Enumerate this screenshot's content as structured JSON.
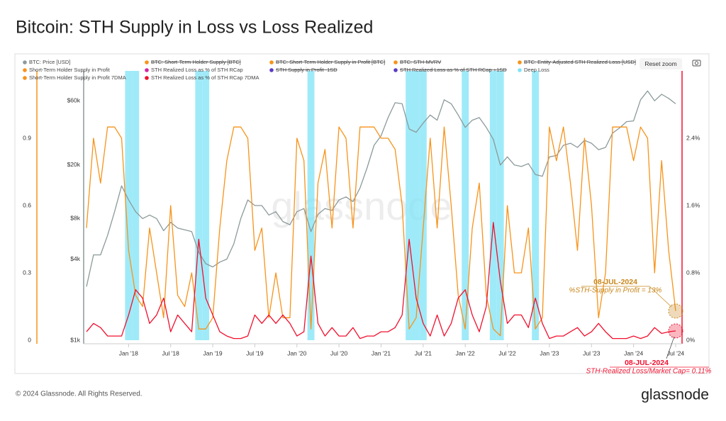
{
  "chart_data": {
    "type": "line",
    "title": "Bitcoin: STH Supply in Loss vs Loss Realized",
    "x": [
      "2017-07",
      "2017-08",
      "2017-09",
      "2017-10",
      "2017-11",
      "2017-12",
      "2018-01",
      "2018-02",
      "2018-03",
      "2018-04",
      "2018-05",
      "2018-06",
      "2018-07",
      "2018-08",
      "2018-09",
      "2018-10",
      "2018-11",
      "2018-12",
      "2019-01",
      "2019-02",
      "2019-03",
      "2019-04",
      "2019-05",
      "2019-06",
      "2019-07",
      "2019-08",
      "2019-09",
      "2019-10",
      "2019-11",
      "2019-12",
      "2020-01",
      "2020-02",
      "2020-03",
      "2020-04",
      "2020-05",
      "2020-06",
      "2020-07",
      "2020-08",
      "2020-09",
      "2020-10",
      "2020-11",
      "2020-12",
      "2021-01",
      "2021-02",
      "2021-03",
      "2021-04",
      "2021-05",
      "2021-06",
      "2021-07",
      "2021-08",
      "2021-09",
      "2021-10",
      "2021-11",
      "2021-12",
      "2022-01",
      "2022-02",
      "2022-03",
      "2022-04",
      "2022-05",
      "2022-06",
      "2022-07",
      "2022-08",
      "2022-09",
      "2022-10",
      "2022-11",
      "2022-12",
      "2023-01",
      "2023-02",
      "2023-03",
      "2023-04",
      "2023-05",
      "2023-06",
      "2023-07",
      "2023-08",
      "2023-09",
      "2023-10",
      "2023-11",
      "2023-12",
      "2024-01",
      "2024-02",
      "2024-03",
      "2024-04",
      "2024-05",
      "2024-06",
      "2024-07"
    ],
    "xticks": [
      {
        "value": "2018-01",
        "label": "Jan '18"
      },
      {
        "value": "2018-07",
        "label": "Jul '18"
      },
      {
        "value": "2019-01",
        "label": "Jan '19"
      },
      {
        "value": "2019-07",
        "label": "Jul '19"
      },
      {
        "value": "2020-01",
        "label": "Jan '20"
      },
      {
        "value": "2020-07",
        "label": "Jul '20"
      },
      {
        "value": "2021-01",
        "label": "Jan '21"
      },
      {
        "value": "2021-07",
        "label": "Jul '21"
      },
      {
        "value": "2022-01",
        "label": "Jan '22"
      },
      {
        "value": "2022-07",
        "label": "Jul '22"
      },
      {
        "value": "2023-01",
        "label": "Jan '23"
      },
      {
        "value": "2023-07",
        "label": "Jul '23"
      },
      {
        "value": "2024-01",
        "label": "Jan '24"
      },
      {
        "value": "2024-07",
        "label": "Jul '24"
      }
    ],
    "ylim": [
      0,
      1.2
    ],
    "yticks": [
      0,
      0.3,
      0.6,
      0.9
    ],
    "y2lim": [
      0,
      3.2
    ],
    "y2ticks": [
      {
        "value": 0,
        "label": "0%"
      },
      {
        "value": 0.8,
        "label": "0.8%"
      },
      {
        "value": 1.6,
        "label": "1.6%"
      },
      {
        "value": 2.4,
        "label": "2.4%"
      }
    ],
    "y3lim": [
      1000,
      100000
    ],
    "y3_log": true,
    "y3ticks": [
      {
        "value": 1000,
        "label": "$1k"
      },
      {
        "value": 4000,
        "label": "$4k"
      },
      {
        "value": 8000,
        "label": "$8k"
      },
      {
        "value": 20000,
        "label": "$20k"
      },
      {
        "value": 60000,
        "label": "$60k"
      }
    ],
    "series": [
      {
        "name": "BTC: Price [USD]",
        "color": "#8c9a9a",
        "axis": "y3",
        "visible": true,
        "values": [
          2500,
          4300,
          4300,
          6000,
          9000,
          14000,
          11000,
          9000,
          8000,
          8500,
          8000,
          6500,
          7500,
          6800,
          6600,
          6400,
          4500,
          3700,
          3500,
          3800,
          4000,
          5200,
          8000,
          11000,
          10000,
          10000,
          8500,
          9000,
          7600,
          7200,
          9000,
          9500,
          6400,
          8600,
          9500,
          9200,
          11000,
          11600,
          10700,
          13500,
          19000,
          28000,
          33000,
          45000,
          58000,
          57000,
          37000,
          35000,
          41000,
          47000,
          43000,
          61000,
          57000,
          47000,
          38000,
          43000,
          45000,
          38000,
          31000,
          20000,
          23000,
          20000,
          19500,
          20500,
          17000,
          16500,
          23000,
          23500,
          28000,
          29000,
          27000,
          30500,
          29000,
          26000,
          27000,
          34500,
          37700,
          42000,
          42500,
          61000,
          71000,
          60000,
          67000,
          62500,
          57000
        ]
      },
      {
        "name": "BTC: Short-Term Holder Supply [BTC]",
        "color": "#f7931a",
        "visible": false
      },
      {
        "name": "BTC: Short-Term Holder Supply in Profit [BTC]",
        "color": "#f7931a",
        "visible": false
      },
      {
        "name": "BTC: STH-MVRV",
        "color": "#f7931a",
        "visible": false
      },
      {
        "name": "BTC: Entity-Adjusted STH Realized Loss [USD]",
        "color": "#f7931a",
        "visible": false
      },
      {
        "name": "Short-Term Holder Supply in Profit",
        "color": "#f7931a",
        "visible": true
      },
      {
        "name": "STH Realized Loss as % of STH RCap",
        "color": "#d6249f",
        "visible": true
      },
      {
        "name": "STH Supply in Profit -1SD",
        "color": "#5b3cc4",
        "visible": false
      },
      {
        "name": "STH Realized Loss as % of STH RCap +1SD",
        "color": "#5b3cc4",
        "visible": false
      },
      {
        "name": "Deep Loss",
        "color": "#7fe3f5",
        "type": "band",
        "values": [
          null,
          null,
          null,
          null,
          null,
          null,
          1,
          1,
          null,
          null,
          null,
          null,
          null,
          null,
          null,
          null,
          1,
          1,
          null,
          null,
          null,
          null,
          null,
          null,
          null,
          null,
          null,
          null,
          null,
          null,
          null,
          null,
          1,
          null,
          null,
          null,
          null,
          null,
          null,
          null,
          null,
          null,
          null,
          null,
          null,
          null,
          1,
          1,
          1,
          null,
          null,
          null,
          null,
          null,
          1,
          null,
          null,
          null,
          1,
          1,
          null,
          null,
          null,
          null,
          1,
          null,
          null,
          null,
          null,
          null,
          null,
          null,
          null,
          null,
          null,
          null,
          null,
          null,
          null,
          null,
          null,
          null,
          null,
          null,
          null
        ]
      },
      {
        "name": "Short-Term Holder Supply in Profit 7DMA",
        "color": "#f7931a",
        "axis": "y",
        "visible": true,
        "values": [
          0.5,
          0.9,
          0.7,
          0.95,
          0.95,
          0.9,
          0.4,
          0.2,
          0.15,
          0.5,
          0.3,
          0.1,
          0.6,
          0.2,
          0.15,
          0.3,
          0.05,
          0.05,
          0.1,
          0.5,
          0.8,
          0.95,
          0.95,
          0.9,
          0.4,
          0.5,
          0.1,
          0.3,
          0.1,
          0.1,
          0.9,
          0.8,
          0.05,
          0.7,
          0.85,
          0.5,
          0.95,
          0.9,
          0.5,
          0.95,
          0.95,
          0.95,
          0.9,
          0.9,
          0.85,
          0.6,
          0.05,
          0.1,
          0.5,
          0.9,
          0.5,
          0.95,
          0.6,
          0.2,
          0.05,
          0.5,
          0.7,
          0.2,
          0.05,
          0.02,
          0.6,
          0.3,
          0.3,
          0.5,
          0.05,
          0.1,
          0.95,
          0.8,
          0.95,
          0.7,
          0.4,
          0.9,
          0.6,
          0.1,
          0.3,
          0.95,
          0.95,
          0.95,
          0.8,
          0.95,
          0.9,
          0.3,
          0.8,
          0.4,
          0.13
        ]
      },
      {
        "name": "STH Realized Loss as % of STH RCap 7DMA",
        "color": "#f0102e",
        "axis": "y2",
        "visible": true,
        "values": [
          0.1,
          0.2,
          0.15,
          0.05,
          0.05,
          0.05,
          0.3,
          0.6,
          0.5,
          0.2,
          0.3,
          0.5,
          0.1,
          0.3,
          0.2,
          0.1,
          1.2,
          0.5,
          0.3,
          0.1,
          0.05,
          0.02,
          0.02,
          0.05,
          0.3,
          0.2,
          0.3,
          0.2,
          0.3,
          0.2,
          0.05,
          0.1,
          1.0,
          0.2,
          0.05,
          0.15,
          0.05,
          0.05,
          0.15,
          0.02,
          0.05,
          0.05,
          0.1,
          0.1,
          0.15,
          0.3,
          1.2,
          0.5,
          0.2,
          0.05,
          0.3,
          0.05,
          0.2,
          0.5,
          0.6,
          0.3,
          0.1,
          0.4,
          1.4,
          0.7,
          0.2,
          0.3,
          0.3,
          0.15,
          0.5,
          0.2,
          0.02,
          0.05,
          0.05,
          0.1,
          0.15,
          0.05,
          0.1,
          0.2,
          0.1,
          0.02,
          0.02,
          0.02,
          0.05,
          0.02,
          0.05,
          0.15,
          0.08,
          0.1,
          0.11
        ]
      }
    ],
    "annotations": [
      {
        "date": "08-JUL-2024",
        "text": "%STH-Supply in Profit = 13%",
        "color": "#c8861a",
        "series": 10
      },
      {
        "date": "08-JUL-2024",
        "text": "STH-Realized Loss/Market Cap= 0.11%",
        "color": "#f0102e",
        "series": 11
      }
    ],
    "watermark": "glassnode",
    "reset_zoom": "Reset zoom"
  },
  "footer": "© 2024 Glassnode. All Rights Reserved.",
  "logo": "glassnode"
}
